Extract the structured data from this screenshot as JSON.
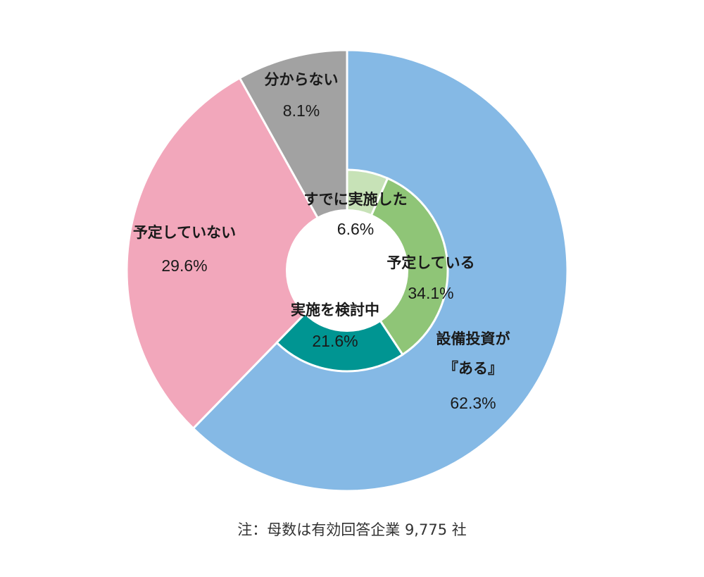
{
  "chart_data": [
    {
      "type": "pie",
      "ring": "outer",
      "slices": [
        {
          "name": "設備投資が『ある』",
          "name_lines": [
            "設備投資が",
            "『ある』"
          ],
          "value": 62.3,
          "value_label": "62.3%",
          "color": "#85b9e5"
        },
        {
          "name": "予定していない",
          "name_lines": [
            "予定していない"
          ],
          "value": 29.6,
          "value_label": "29.6%",
          "color": "#f2a7bb"
        },
        {
          "name": "分からない",
          "name_lines": [
            "分からない"
          ],
          "value": 8.1,
          "value_label": "8.1%",
          "color": "#a2a2a2"
        }
      ]
    },
    {
      "type": "pie",
      "ring": "inner",
      "slices": [
        {
          "name": "すでに実施した",
          "name_lines": [
            "すでに実施した"
          ],
          "value": 6.6,
          "value_label": "6.6%",
          "color": "#c7e2b7"
        },
        {
          "name": "予定している",
          "name_lines": [
            "予定している"
          ],
          "value": 34.1,
          "value_label": "34.1%",
          "color": "#8fc577"
        },
        {
          "name": "実施を検討中",
          "name_lines": [
            "実施を検討中"
          ],
          "value": 21.6,
          "value_label": "21.6%",
          "color": "#009592"
        }
      ]
    }
  ],
  "note": "注：母数は有効回答企業 9,775 社"
}
